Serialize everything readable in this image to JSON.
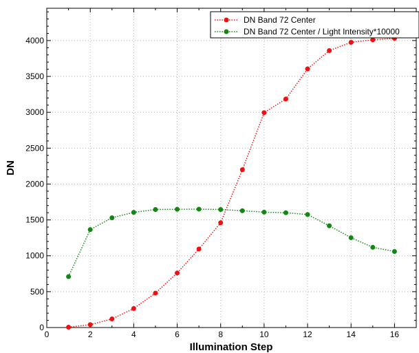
{
  "chart_data": {
    "type": "line",
    "xlabel": "Illumination Step",
    "ylabel": "DN",
    "xlim": [
      0,
      17
    ],
    "ylim": [
      0,
      4450
    ],
    "xticks": [
      0,
      2,
      4,
      6,
      8,
      10,
      12,
      14,
      16
    ],
    "yticks": [
      0,
      500,
      1000,
      1500,
      2000,
      2500,
      3000,
      3500,
      4000
    ],
    "x_tick_labels": [
      "0",
      "2",
      "4",
      "6",
      "8",
      "10",
      "12",
      "14",
      "16"
    ],
    "y_tick_labels": [
      "0",
      "500",
      "1000",
      "1500",
      "2000",
      "2500",
      "3000",
      "3500",
      "4000"
    ],
    "grid": true,
    "legend_position": "top-right",
    "x": [
      1,
      2,
      3,
      4,
      5,
      6,
      7,
      8,
      9,
      10,
      11,
      12,
      13,
      14,
      15,
      16
    ],
    "series": [
      {
        "name": "DN Band 72 Center",
        "color": "#ee1111",
        "values": [
          5,
          40,
          120,
          265,
          480,
          760,
          1095,
          1460,
          2200,
          2995,
          3185,
          3605,
          3860,
          3975,
          4010,
          4030
        ]
      },
      {
        "name": "DN Band 72 Center / Light Intensity*10000",
        "color": "#118811",
        "values": [
          710,
          1365,
          1530,
          1605,
          1645,
          1648,
          1650,
          1645,
          1628,
          1608,
          1600,
          1575,
          1418,
          1252,
          1118,
          1060
        ]
      }
    ]
  }
}
